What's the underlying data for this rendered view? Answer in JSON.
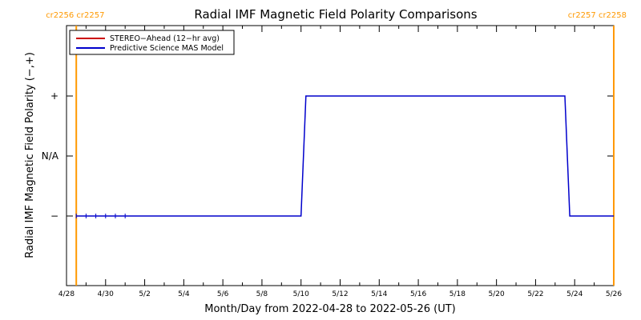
{
  "chart_data": {
    "type": "line",
    "title": "Radial IMF Magnetic Field Polarity Comparisons",
    "xlabel": "Month/Day from 2022-04-28 to 2022-05-26 (UT)",
    "ylabel": "Radial IMF Magnetic Field Polarity (−,+)",
    "x_range": [
      "2022-04-28",
      "2022-05-26"
    ],
    "y_categories": [
      "−",
      "N/A",
      "+"
    ],
    "x_ticks": [
      {
        "date": "2022-04-28",
        "label": "4/28"
      },
      {
        "date": "2022-04-30",
        "label": "4/30"
      },
      {
        "date": "2022-05-02",
        "label": "5/2"
      },
      {
        "date": "2022-05-04",
        "label": "5/4"
      },
      {
        "date": "2022-05-06",
        "label": "5/6"
      },
      {
        "date": "2022-05-08",
        "label": "5/8"
      },
      {
        "date": "2022-05-10",
        "label": "5/10"
      },
      {
        "date": "2022-05-12",
        "label": "5/12"
      },
      {
        "date": "2022-05-14",
        "label": "5/14"
      },
      {
        "date": "2022-05-16",
        "label": "5/16"
      },
      {
        "date": "2022-05-18",
        "label": "5/18"
      },
      {
        "date": "2022-05-20",
        "label": "5/20"
      },
      {
        "date": "2022-05-22",
        "label": "5/22"
      },
      {
        "date": "2022-05-24",
        "label": "5/24"
      },
      {
        "date": "2022-05-26",
        "label": "5/26"
      }
    ],
    "series": [
      {
        "name": "STEREO−Ahead (12−hr avg)",
        "color": "#cc0000",
        "points": [
          {
            "x": "2022-04-28T12:00",
            "y": "−"
          },
          {
            "x": "2022-04-29T00:00",
            "y": "−"
          },
          {
            "x": "2022-04-29T12:00",
            "y": "−"
          },
          {
            "x": "2022-04-30T00:00",
            "y": "−"
          },
          {
            "x": "2022-04-30T12:00",
            "y": "−"
          },
          {
            "x": "2022-05-01T00:00",
            "y": "−"
          }
        ]
      },
      {
        "name": "Predictive Science MAS Model",
        "color": "#0000cc",
        "points": [
          {
            "x": "2022-04-28T12:00",
            "y": "−"
          },
          {
            "x": "2022-05-10T00:00",
            "y": "−"
          },
          {
            "x": "2022-05-10T06:00",
            "y": "+"
          },
          {
            "x": "2022-05-23T12:00",
            "y": "+"
          },
          {
            "x": "2022-05-23T18:00",
            "y": "−"
          },
          {
            "x": "2022-05-26T00:00",
            "y": "−"
          }
        ]
      }
    ],
    "carrington_markers": [
      {
        "date": "2022-04-28T12:00",
        "label": "cr2256 cr2257"
      },
      {
        "date": "2022-05-26T00:00",
        "label": "cr2257 cr2258"
      }
    ],
    "marker_color": "#ff9900",
    "legend_position": "top-left",
    "grid": false
  }
}
